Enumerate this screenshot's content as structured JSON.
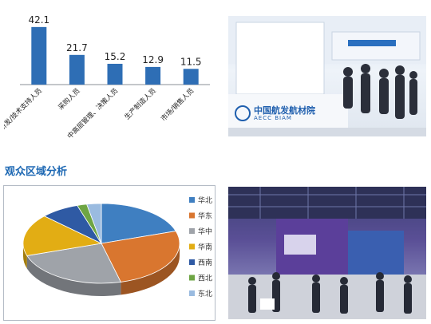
{
  "section": {
    "heading": "观众区域分析"
  },
  "bar_chart": {
    "chart_data": {
      "type": "bar",
      "categories": [
        "研发/技术支持人员",
        "采购人员",
        "中高层管理、决策人员",
        "生产制造人员",
        "市场/销售人员"
      ],
      "values": [
        42.1,
        21.7,
        15.2,
        12.9,
        11.5
      ],
      "value_labels": [
        "42.1",
        "21.7",
        "15.2",
        "12.9",
        "11.5"
      ],
      "ylim": [
        0,
        50
      ],
      "bar_color": "#2e6eb5",
      "grid": false,
      "legend": "none"
    }
  },
  "pie_chart": {
    "chart_data": {
      "type": "pie",
      "categories": [
        "华北",
        "华东",
        "华中",
        "华南",
        "西南",
        "西北",
        "东北"
      ],
      "values": [
        20,
        26,
        24,
        17,
        8,
        2,
        3
      ],
      "colors": [
        "#3f7fc1",
        "#d9762f",
        "#9fa3a9",
        "#e2ad14",
        "#2f5aa4",
        "#6ea544",
        "#9abbe0"
      ],
      "legend": "right",
      "grid": false
    }
  },
  "photos": {
    "top": {
      "booth_brand_cn": "中国航发航材院",
      "booth_brand_en": "AECC BIAM"
    }
  }
}
